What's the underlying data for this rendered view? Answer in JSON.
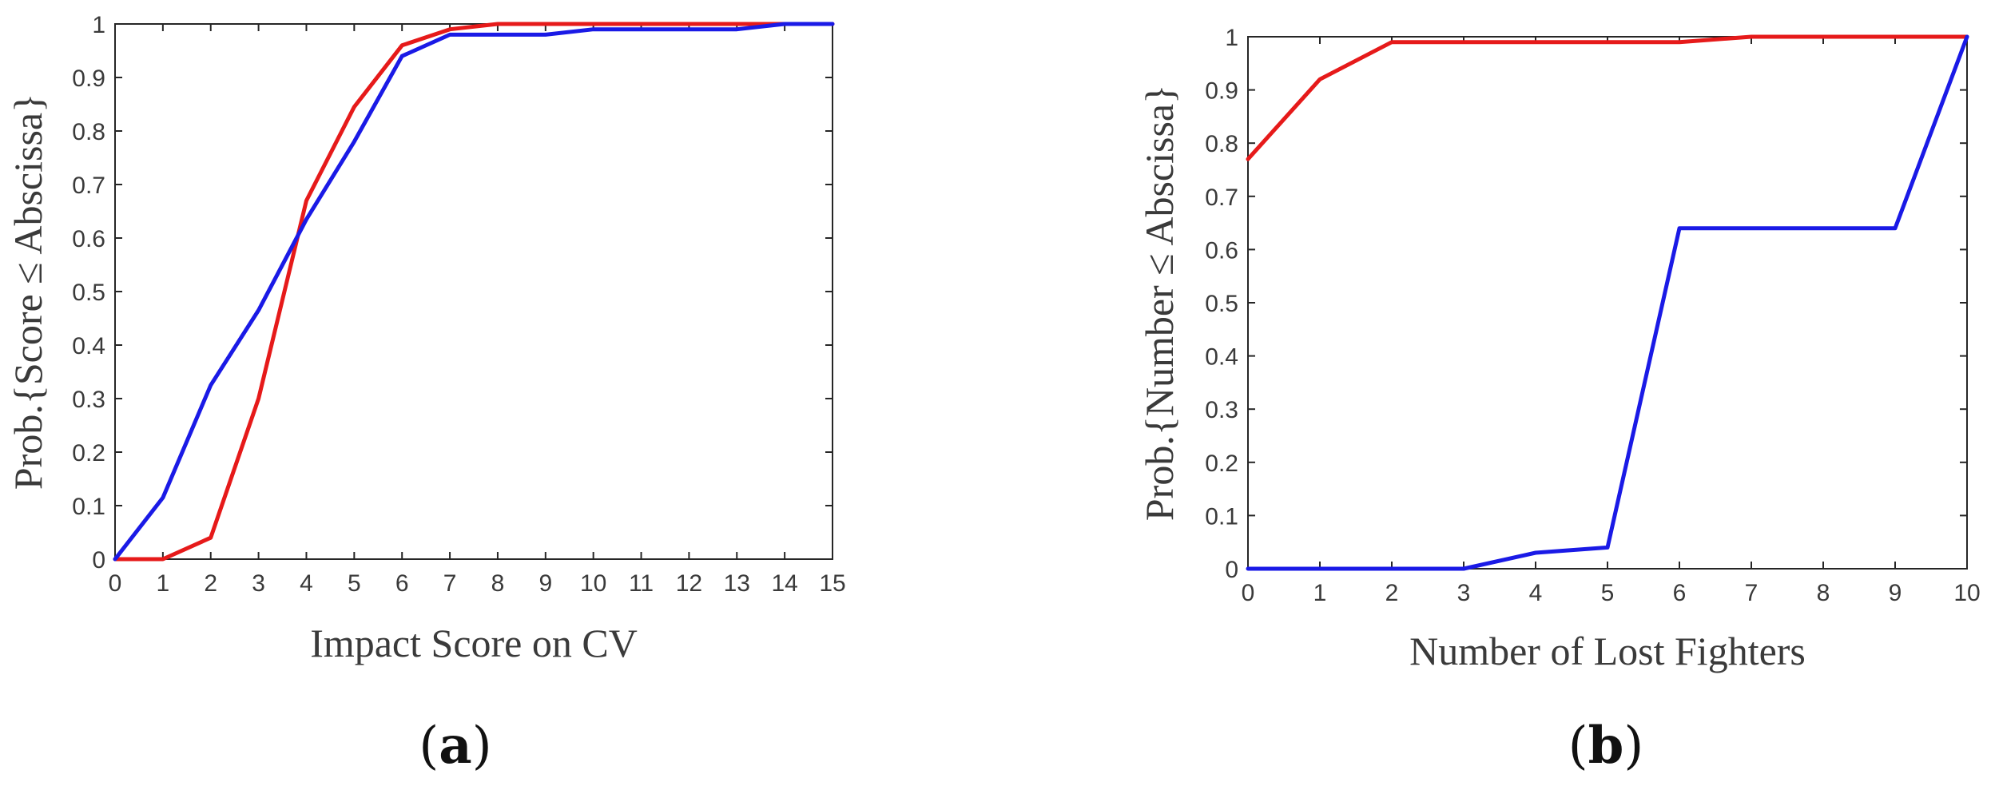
{
  "chart_data": [
    {
      "type": "line",
      "panel_label": "a",
      "xlabel": "Impact Score on CV",
      "ylabel": "Prob.{Score ≤ Abscissa}",
      "xlim": [
        0,
        15
      ],
      "ylim": [
        0,
        1
      ],
      "x_ticks": [
        0,
        1,
        2,
        3,
        4,
        5,
        6,
        7,
        8,
        9,
        10,
        11,
        12,
        13,
        14,
        15
      ],
      "y_ticks": [
        0,
        0.1,
        0.2,
        0.3,
        0.4,
        0.5,
        0.6,
        0.7,
        0.8,
        0.9,
        1
      ],
      "grid": false,
      "series": [
        {
          "color": "#e61a1a",
          "x": [
            0,
            1,
            2,
            3,
            4,
            5,
            6,
            7,
            8,
            9,
            10,
            11,
            12,
            13,
            14,
            15
          ],
          "values": [
            0,
            0,
            0.04,
            0.3,
            0.67,
            0.845,
            0.96,
            0.99,
            1,
            1,
            1,
            1,
            1,
            1,
            1,
            1
          ]
        },
        {
          "color": "#1a1ae6",
          "x": [
            0,
            1,
            2,
            3,
            4,
            5,
            6,
            7,
            8,
            9,
            10,
            11,
            12,
            13,
            14,
            15
          ],
          "values": [
            0,
            0.115,
            0.325,
            0.465,
            0.635,
            0.78,
            0.94,
            0.98,
            0.98,
            0.98,
            0.99,
            0.99,
            0.99,
            0.99,
            1,
            1
          ]
        }
      ]
    },
    {
      "type": "line",
      "panel_label": "b",
      "xlabel": "Number of Lost Fighters",
      "ylabel": "Prob.{Number ≤ Abscissa}",
      "xlim": [
        0,
        10
      ],
      "ylim": [
        0,
        1
      ],
      "x_ticks": [
        0,
        1,
        2,
        3,
        4,
        5,
        6,
        7,
        8,
        9,
        10
      ],
      "y_ticks": [
        0,
        0.1,
        0.2,
        0.3,
        0.4,
        0.5,
        0.6,
        0.7,
        0.8,
        0.9,
        1
      ],
      "grid": false,
      "series": [
        {
          "color": "#e61a1a",
          "x": [
            0,
            1,
            2,
            3,
            4,
            5,
            6,
            7,
            8,
            9,
            10
          ],
          "values": [
            0.77,
            0.92,
            0.99,
            0.99,
            0.99,
            0.99,
            0.99,
            1,
            1,
            1,
            1
          ]
        },
        {
          "color": "#1a1ae6",
          "x": [
            0,
            1,
            2,
            3,
            4,
            5,
            6,
            7,
            8,
            9,
            10
          ],
          "values": [
            0,
            0,
            0,
            0,
            0.03,
            0.04,
            0.64,
            0.64,
            0.64,
            0.64,
            1
          ]
        }
      ]
    }
  ]
}
